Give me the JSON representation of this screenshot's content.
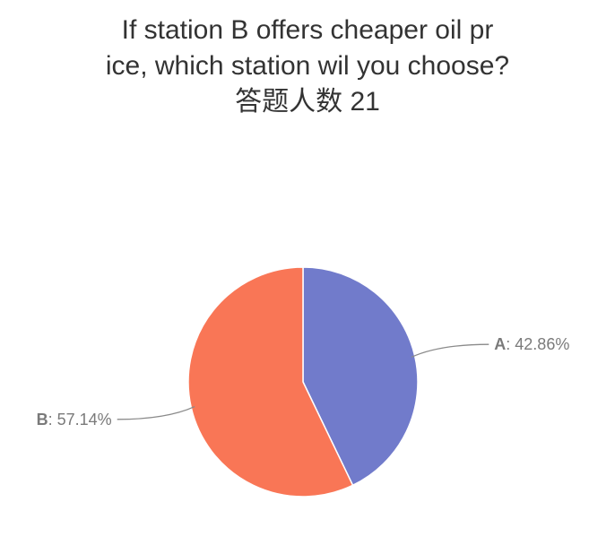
{
  "title_lines": [
    "If station B offers cheaper oil pr",
    "ice, which station wil you choose?",
    "答题人数 21"
  ],
  "chart_data": {
    "type": "pie",
    "title": "If station B offers cheaper oil price, which station wil you choose? 答题人数 21",
    "start_angle_deg": 0,
    "direction": "clockwise",
    "slices": [
      {
        "label": "A",
        "value": 42.86,
        "value_text": "42.86%",
        "color": "#717bcb",
        "label_side": "right"
      },
      {
        "label": "B",
        "value": 57.14,
        "value_text": "57.14%",
        "color": "#f97656",
        "label_side": "left"
      }
    ],
    "legend": "none"
  }
}
